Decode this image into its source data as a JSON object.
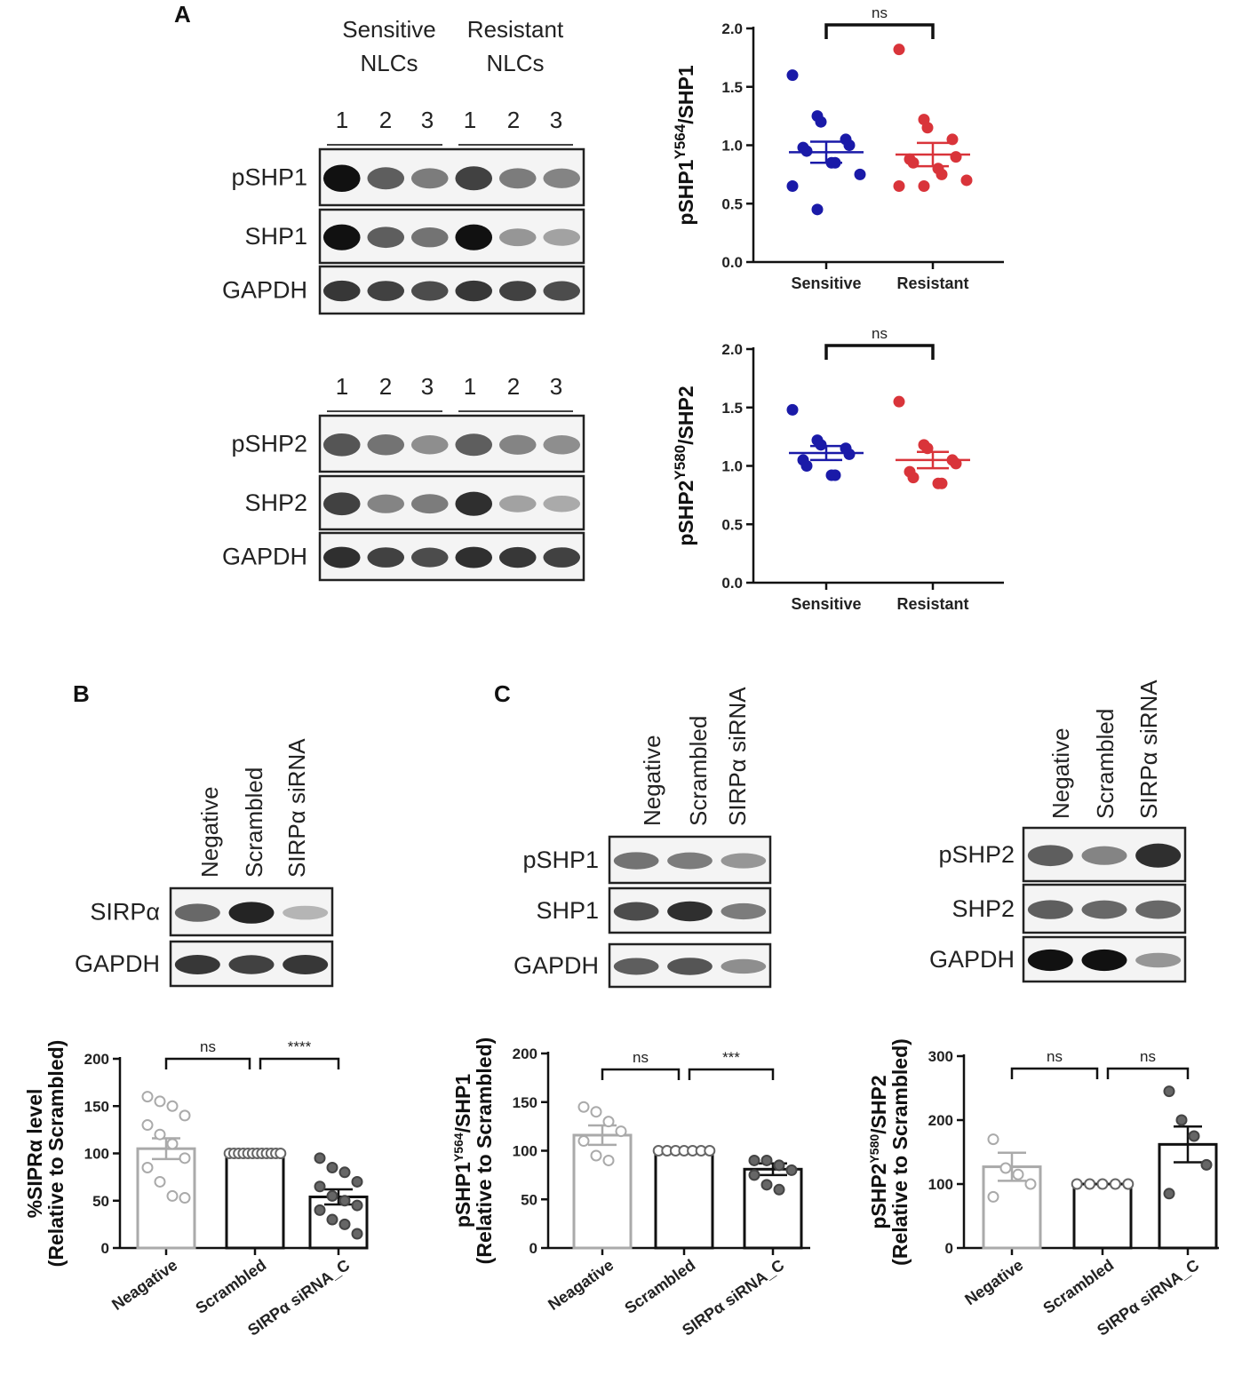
{
  "panels": {
    "a": {
      "letter": "A",
      "group_headers": [
        [
          "Sensitive",
          "NLCs"
        ],
        [
          "Resistant",
          "NLCs"
        ]
      ],
      "lanes": [
        "1",
        "2",
        "3"
      ],
      "blot_shp1": [
        "pSHP1",
        "SHP1",
        "GAPDH"
      ],
      "blot_shp2": [
        "pSHP2",
        "SHP2",
        "GAPDH"
      ]
    },
    "b": {
      "letter": "B",
      "lanes": [
        "Negative",
        "Scrambled",
        "SIRPα siRNA"
      ],
      "blot": [
        "SIRPα",
        "GAPDH"
      ]
    },
    "c": {
      "letter": "C",
      "lanes": [
        "Negative",
        "Scrambled",
        "SIRPα siRNA"
      ],
      "blot_shp1": [
        "pSHP1",
        "SHP1",
        "GAPDH"
      ],
      "blot_shp2": [
        "pSHP2",
        "SHP2",
        "GAPDH"
      ]
    }
  },
  "colors": {
    "sensitive": "#1a1aa8",
    "resistant": "#d9343a",
    "negative_bar": "#aaaaaa",
    "bar": "#111111",
    "band": "#111111"
  },
  "chart_data": [
    {
      "id": "a_top",
      "type": "scatter",
      "ylabel_main": "pSHP1",
      "ylabel_sup": "Y564",
      "ylabel_rest": "/SHP1",
      "categories": [
        "Sensitive",
        "Resistant"
      ],
      "ylim": [
        0,
        2.0
      ],
      "yticks": [
        "0.0",
        "0.5",
        "1.0",
        "1.5",
        "2.0"
      ],
      "series": [
        {
          "values": [
            1.6,
            1.25,
            1.2,
            1.05,
            1.0,
            0.98,
            0.95,
            0.85,
            0.85,
            0.75,
            0.65,
            0.45
          ],
          "mean": 0.94,
          "sem": 0.09
        },
        {
          "values": [
            1.82,
            1.22,
            1.15,
            1.05,
            0.9,
            0.88,
            0.85,
            0.8,
            0.75,
            0.7,
            0.65,
            0.65
          ],
          "mean": 0.92,
          "sem": 0.1
        }
      ],
      "significance": [
        {
          "from": 0,
          "to": 1,
          "label": "ns"
        }
      ]
    },
    {
      "id": "a_bottom",
      "type": "scatter",
      "ylabel_main": "pSHP2",
      "ylabel_sup": "Y580",
      "ylabel_rest": "/SHP2",
      "categories": [
        "Sensitive",
        "Resistant"
      ],
      "ylim": [
        0,
        2.0
      ],
      "yticks": [
        "0.0",
        "0.5",
        "1.0",
        "1.5",
        "2.0"
      ],
      "series": [
        {
          "values": [
            1.48,
            1.22,
            1.18,
            1.15,
            1.1,
            1.05,
            1.0,
            0.92,
            0.92
          ],
          "mean": 1.11,
          "sem": 0.06
        },
        {
          "values": [
            1.55,
            1.18,
            1.15,
            1.05,
            1.02,
            0.95,
            0.9,
            0.85,
            0.85
          ],
          "mean": 1.05,
          "sem": 0.07
        }
      ],
      "significance": [
        {
          "from": 0,
          "to": 1,
          "label": "ns"
        }
      ]
    },
    {
      "id": "b",
      "type": "bar",
      "ylabel_line1": "%SIPRα level",
      "ylabel_line2": "(Relative to Scrambled)",
      "categories": [
        "Neagative",
        "Scrambled",
        "SIRPα siRNA_C"
      ],
      "ylim": [
        0,
        200
      ],
      "yticks": [
        "0",
        "50",
        "100",
        "150",
        "200"
      ],
      "values": [
        105,
        100,
        54
      ],
      "errors": [
        11,
        0,
        8
      ],
      "points": [
        [
          160,
          155,
          150,
          140,
          130,
          120,
          110,
          95,
          85,
          70,
          55,
          53
        ],
        [
          100,
          100,
          100,
          100,
          100,
          100,
          100,
          100,
          100,
          100,
          100,
          100
        ],
        [
          95,
          85,
          80,
          70,
          65,
          55,
          50,
          45,
          40,
          30,
          25,
          15
        ]
      ],
      "significance": [
        {
          "from": 0,
          "to": 1,
          "label": "ns"
        },
        {
          "from": 1,
          "to": 2,
          "label": "****"
        }
      ]
    },
    {
      "id": "c_shp1",
      "type": "bar",
      "ylabel_main": "pSHP1",
      "ylabel_sup": "Y564",
      "ylabel_rest": "/SHP1",
      "ylabel_line2": "(Relative to Scrambled)",
      "categories": [
        "Neagative",
        "Scrambled",
        "SIRPα siRNA_C"
      ],
      "ylim": [
        0,
        200
      ],
      "yticks": [
        "0",
        "50",
        "100",
        "150",
        "200"
      ],
      "values": [
        116,
        100,
        81
      ],
      "errors": [
        10,
        0,
        6
      ],
      "points": [
        [
          145,
          140,
          130,
          120,
          110,
          95,
          90
        ],
        [
          100,
          100,
          100,
          100,
          100,
          100,
          100
        ],
        [
          90,
          90,
          85,
          80,
          75,
          65,
          60
        ]
      ],
      "significance": [
        {
          "from": 0,
          "to": 1,
          "label": "ns"
        },
        {
          "from": 1,
          "to": 2,
          "label": "***"
        }
      ]
    },
    {
      "id": "c_shp2",
      "type": "bar",
      "ylabel_main": "pSHP2",
      "ylabel_sup": "Y580",
      "ylabel_rest": "/SHP2",
      "ylabel_line2": "(Relative to Scrambled)",
      "categories": [
        "Negative",
        "Scrambled",
        "SIRPα siRNA_C"
      ],
      "ylim": [
        0,
        300
      ],
      "yticks": [
        "0",
        "100",
        "200",
        "300"
      ],
      "values": [
        127,
        100,
        162
      ],
      "errors": [
        22,
        0,
        28
      ],
      "points": [
        [
          170,
          125,
          115,
          100,
          80
        ],
        [
          100,
          100,
          100,
          100,
          100
        ],
        [
          245,
          200,
          175,
          130,
          85
        ]
      ],
      "significance": [
        {
          "from": 0,
          "to": 1,
          "label": "ns"
        },
        {
          "from": 1,
          "to": 2,
          "label": "ns"
        }
      ]
    }
  ]
}
